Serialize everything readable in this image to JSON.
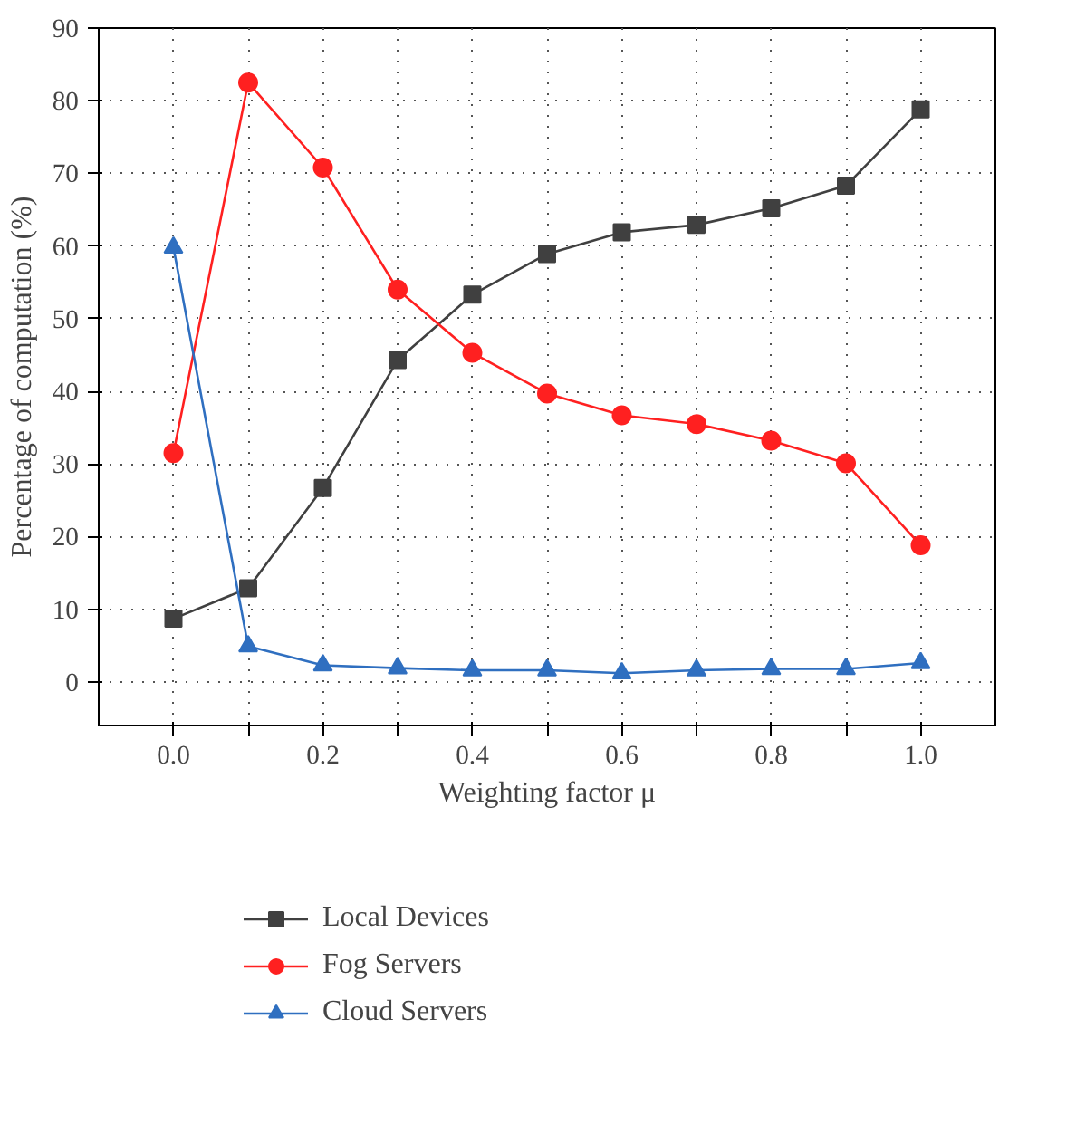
{
  "chart_data": {
    "type": "line",
    "xlabel": "Weighting factor μ",
    "ylabel": "Percentage of computation (%)",
    "x": [
      0.0,
      0.1,
      0.2,
      0.3,
      0.4,
      0.5,
      0.6,
      0.7,
      0.8,
      0.9,
      1.0
    ],
    "series": [
      {
        "name": "Local Devices",
        "color": "#404040",
        "marker": "square",
        "values": [
          8.7,
          12.9,
          26.7,
          44.3,
          53.3,
          58.9,
          61.9,
          62.9,
          65.2,
          68.3,
          78.8
        ]
      },
      {
        "name": "Fog Servers",
        "color": "#ff2020",
        "marker": "circle",
        "values": [
          31.5,
          82.5,
          70.8,
          54.0,
          45.3,
          39.7,
          36.7,
          35.5,
          33.2,
          30.1,
          18.8
        ]
      },
      {
        "name": "Cloud Servers",
        "color": "#2f6fc0",
        "marker": "triangle",
        "values": [
          59.8,
          4.9,
          2.3,
          1.9,
          1.6,
          1.6,
          1.2,
          1.6,
          1.8,
          1.8,
          2.6
        ]
      }
    ],
    "xlim": [
      -0.1,
      1.1
    ],
    "ylim": [
      -6,
      90
    ],
    "xticks": [
      {
        "value": 0.0,
        "label": "0.0"
      },
      {
        "value": 0.1,
        "label": null
      },
      {
        "value": 0.2,
        "label": "0.2"
      },
      {
        "value": 0.3,
        "label": null
      },
      {
        "value": 0.4,
        "label": "0.4"
      },
      {
        "value": 0.5,
        "label": null
      },
      {
        "value": 0.6,
        "label": "0.6"
      },
      {
        "value": 0.7,
        "label": null
      },
      {
        "value": 0.8,
        "label": "0.8"
      },
      {
        "value": 0.9,
        "label": null
      },
      {
        "value": 1.0,
        "label": "1.0"
      }
    ],
    "yticks": [
      0,
      10,
      20,
      30,
      40,
      50,
      60,
      70,
      80,
      90
    ],
    "grid": true,
    "legend": "bottom",
    "line_style": "solid"
  }
}
